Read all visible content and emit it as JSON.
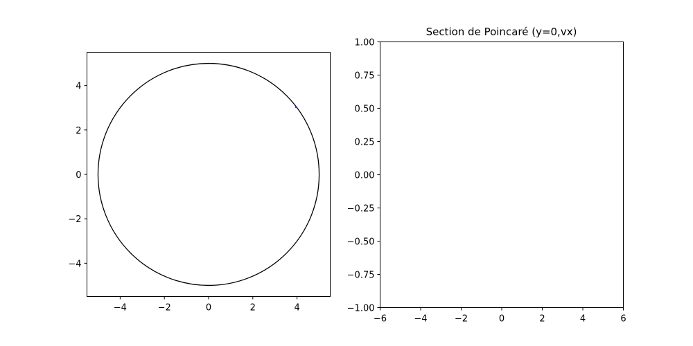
{
  "chart_data": [
    {
      "type": "line",
      "title": "",
      "xlabel": "",
      "ylabel": "",
      "xlim": [
        -5.5,
        5.5
      ],
      "ylim": [
        -5.5,
        5.5
      ],
      "xticks": [
        -4,
        -2,
        0,
        2,
        4
      ],
      "yticks": [
        -4,
        -2,
        0,
        2,
        4
      ],
      "xtick_labels": [
        "−4",
        "−2",
        "0",
        "2",
        "4"
      ],
      "ytick_labels": [
        "−4",
        "−2",
        "0",
        "2",
        "4"
      ],
      "grid": false,
      "series": [
        {
          "kind": "circle",
          "center": [
            0,
            0
          ],
          "radius": 5,
          "color": "#000000"
        },
        {
          "kind": "trajectory",
          "color": "#0000ff",
          "x": [
            3.92,
            3.96,
            4.0
          ],
          "y": [
            3.01,
            3.04,
            3.0
          ]
        }
      ]
    },
    {
      "type": "scatter",
      "title": "Section de Poincaré (y=0,vx)",
      "xlabel": "",
      "ylabel": "",
      "xlim": [
        -6,
        6
      ],
      "ylim": [
        -1,
        1
      ],
      "xticks": [
        -6,
        -4,
        -2,
        0,
        2,
        4,
        6
      ],
      "yticks": [
        -1.0,
        -0.75,
        -0.5,
        -0.25,
        0.0,
        0.25,
        0.5,
        0.75,
        1.0
      ],
      "xtick_labels": [
        "−6",
        "−4",
        "−2",
        "0",
        "2",
        "4",
        "6"
      ],
      "ytick_labels": [
        "−1.00",
        "−0.75",
        "−0.50",
        "−0.25",
        "0.00",
        "0.25",
        "0.50",
        "0.75",
        "1.00"
      ],
      "grid": false,
      "series": []
    }
  ]
}
